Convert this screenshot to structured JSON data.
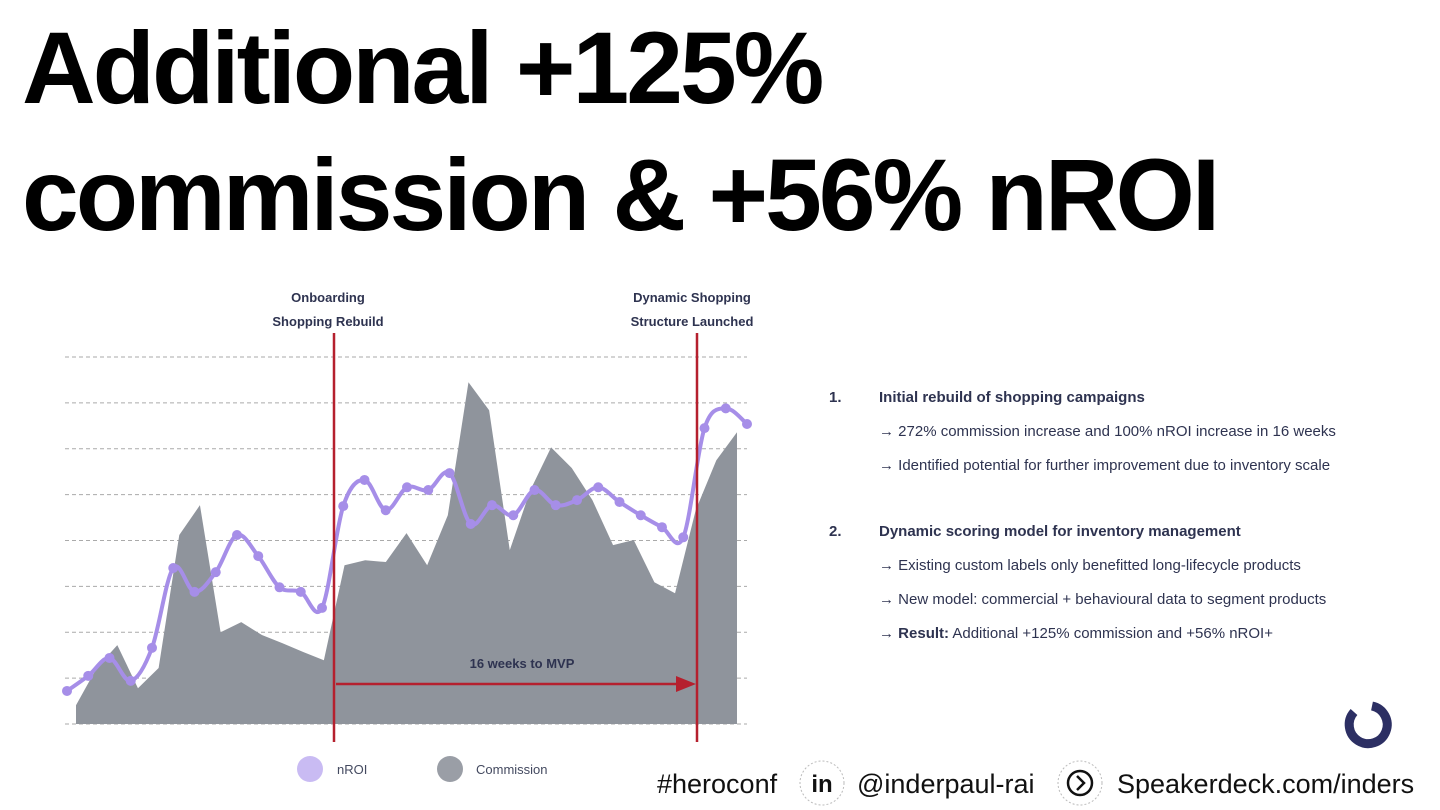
{
  "title": [
    "Additional +125%",
    "commission & +56% nROI"
  ],
  "chart_data": {
    "type": "line_area",
    "ylim": [
      0,
      8
    ],
    "yticks": [
      0,
      1,
      2,
      3,
      4,
      5,
      6,
      7,
      8
    ],
    "grid": true,
    "series": [
      {
        "name": "nROI",
        "color": "#a68ee8",
        "values": [
          0.72,
          1.05,
          1.44,
          0.94,
          1.66,
          3.4,
          2.88,
          3.31,
          4.12,
          3.66,
          2.98,
          2.88,
          2.53,
          4.75,
          5.32,
          4.66,
          5.16,
          5.1,
          5.47,
          4.36,
          4.77,
          4.55,
          5.1,
          4.77,
          4.88,
          5.16,
          4.84,
          4.55,
          4.29,
          4.07,
          6.45,
          6.88,
          6.54
        ]
      },
      {
        "name": "Commission",
        "color": "#8f949c",
        "values": [
          0.41,
          1.22,
          1.72,
          0.78,
          1.22,
          4.12,
          4.77,
          2.0,
          2.22,
          1.94,
          1.76,
          1.57,
          1.39,
          3.46,
          3.57,
          3.53,
          4.16,
          3.46,
          4.55,
          7.45,
          6.84,
          3.79,
          5.1,
          6.03,
          5.58,
          4.88,
          3.9,
          4.01,
          3.09,
          2.85,
          4.66,
          5.75,
          6.36
        ]
      }
    ],
    "legend_colors": [
      "#c9bbf3",
      "#9a9ea6"
    ],
    "annotations": [
      [
        "Onboarding",
        "Shopping Rebuild"
      ],
      [
        "Dynamic Shopping",
        "Structure Launched"
      ]
    ],
    "span_label": "16 weeks to MVP"
  },
  "points": [
    {
      "number": "1.",
      "heading": "Initial rebuild of shopping campaigns",
      "bullets": [
        "→ 272% commission increase and 100% nROI increase in 16 weeks",
        "→ Identified potential for further improvement due to inventory scale"
      ]
    },
    {
      "number": "2.",
      "heading": "Dynamic scoring model for inventory management",
      "bullets": [
        "→ Existing custom labels only benefitted long-lifecycle products",
        "→ New model: commercial + behavioural data to segment products"
      ],
      "result": {
        "arrow": "→",
        "label": "Result:",
        "text": "Additional +125% commission and +56% nROI+"
      }
    }
  ],
  "footer": {
    "hashtag": "#heroconf",
    "linkedin_icon": "in",
    "handle": "@inderpaul-rai",
    "site": "Speakerdeck.com/inders"
  }
}
